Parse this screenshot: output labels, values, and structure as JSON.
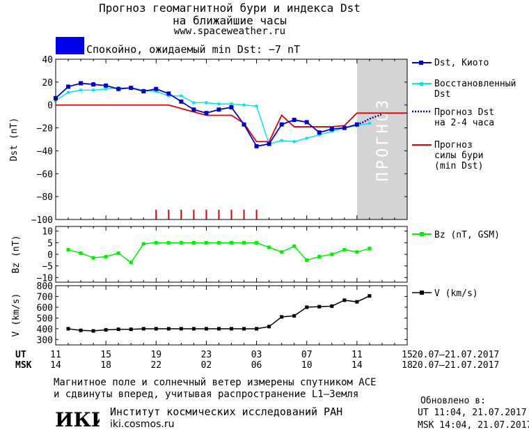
{
  "header": {
    "title_line1": "Прогноз геомагнитной бури и индекса Dst",
    "title_line2": "на ближайшие часы",
    "site": "www.spaceweather.ru",
    "status_text": "Спокойно, ожидаемый min Dst: −7 nT",
    "status_color": "#0000ee"
  },
  "legend": {
    "dst_kyoto": "Dst, Киото",
    "restored_1": "Восстановленный",
    "restored_2": "Dst",
    "forecast_1": "Прогноз Dst",
    "forecast_2": "на 2-4 часа",
    "storm_1": "Прогноз",
    "storm_2": "силы бури",
    "storm_3": "(min Dst)",
    "bz": "Bz (nT, GSM)",
    "v": "V (km/s)"
  },
  "forecast_band_label": "ПРОГНОЗ",
  "axis": {
    "ut_label": "UT",
    "msk_label": "MSK",
    "ut_ticks": [
      "11",
      "15",
      "19",
      "23",
      "03",
      "07",
      "11",
      "15"
    ],
    "msk_ticks": [
      "14",
      "18",
      "22",
      "02",
      "06",
      "10",
      "14",
      "18"
    ],
    "date_range_ut": "20.07–21.07.2017",
    "date_range_msk": "20.07–21.07.2017"
  },
  "footer": {
    "line1": "Магнитное поле и солнечный ветер измерены спутником ACE",
    "line2": "и сдвинуты вперед, учитывая распространение L1–Земля",
    "logo_text": "ИКИ",
    "institute": "Институт космических исследований РАН",
    "institute_url": "iki.cosmos.ru",
    "updated_label": "Обновлено в:",
    "updated_ut": "UT  11:04, 21.07.2017",
    "updated_msk": "MSK 14:04, 21.07.2017"
  },
  "colors": {
    "dst": "#0000cc",
    "restored": "#00e5ee",
    "forecast": "#0000cc",
    "storm": "#dd0000",
    "bz": "#00ee00",
    "v": "#000000",
    "band": "#d4d4d4"
  },
  "chart_data": [
    {
      "type": "line",
      "ylabel": "Dst (nT)",
      "ylim": [
        -100,
        40
      ],
      "yticks": [
        40,
        20,
        0,
        -20,
        -40,
        -60,
        -80,
        -100
      ],
      "x_unit": "hours UT from 20.07 11:00",
      "xlim": [
        0,
        28
      ],
      "series": [
        {
          "name": "Dst, Киото",
          "x": [
            0,
            1,
            2,
            3,
            4,
            5,
            6,
            7,
            8,
            9,
            10,
            11,
            12,
            13,
            14,
            15,
            16,
            17,
            18,
            19,
            20,
            21,
            22,
            23,
            24
          ],
          "y": [
            6,
            16,
            19,
            18,
            17,
            14,
            15,
            12,
            14,
            10,
            3,
            -4,
            -7,
            -4,
            -2,
            -17,
            -36,
            -34,
            -17,
            -13,
            -15,
            -24,
            -21,
            -20,
            -17
          ]
        },
        {
          "name": "Восстановленный Dst",
          "x": [
            0,
            1,
            2,
            3,
            4,
            5,
            6,
            7,
            8,
            9,
            10,
            11,
            12,
            13,
            14,
            15,
            16,
            17,
            18,
            19,
            20,
            21,
            22,
            23,
            24,
            25
          ],
          "y": [
            4,
            11,
            13,
            13,
            14,
            15,
            15,
            13,
            12,
            8,
            8,
            2,
            2,
            1,
            1,
            0,
            -1,
            -34,
            -31,
            -32,
            -29,
            -26,
            -23,
            -20,
            -18,
            -16
          ]
        },
        {
          "name": "Прогноз Dst на 2-4 часа",
          "x": [
            24,
            24.5,
            25,
            25.5,
            26
          ],
          "y": [
            -17,
            -15,
            -12,
            -10,
            -8
          ]
        },
        {
          "name": "Прогноз силы бури (min Dst)",
          "x": [
            0,
            9,
            11,
            12,
            14,
            15,
            16,
            17,
            18,
            19,
            20,
            21,
            22,
            23,
            24,
            28
          ],
          "y": [
            0,
            0,
            -6,
            -9,
            -9,
            -16,
            -32,
            -32,
            -9,
            -19,
            -19,
            -19,
            -19,
            -18,
            -7,
            -7
          ]
        }
      ],
      "storm_markers_x": [
        8,
        9,
        10,
        11,
        12,
        13,
        14,
        15,
        16
      ],
      "forecast_band_x": [
        24,
        28
      ]
    },
    {
      "type": "line",
      "ylabel": "Bz (nT)",
      "ylim": [
        -12,
        12
      ],
      "yticks": [
        10,
        5,
        0,
        -5,
        -10
      ],
      "x_unit": "hours UT from 20.07 11:00",
      "xlim": [
        0,
        28
      ],
      "series": [
        {
          "name": "Bz (nT, GSM)",
          "x": [
            1,
            2,
            3,
            4,
            5,
            6,
            7,
            8,
            9,
            10,
            11,
            12,
            13,
            14,
            15,
            16,
            17,
            18,
            19,
            20,
            21,
            22,
            23,
            24,
            25
          ],
          "y": [
            2,
            0.5,
            -1.5,
            -1,
            0.5,
            -3.5,
            4.5,
            5,
            5,
            5,
            5,
            5,
            5,
            5,
            5,
            5,
            3,
            1,
            3.5,
            -2.5,
            -1,
            0,
            2,
            1,
            2.5
          ]
        }
      ]
    },
    {
      "type": "line",
      "ylabel": "V (km/s)",
      "ylim": [
        250,
        800
      ],
      "yticks": [
        800,
        700,
        600,
        500,
        400,
        300
      ],
      "x_unit": "hours UT from 20.07 11:00",
      "xlim": [
        0,
        28
      ],
      "series": [
        {
          "name": "V (km/s)",
          "x": [
            1,
            2,
            3,
            4,
            5,
            6,
            7,
            8,
            9,
            10,
            11,
            12,
            13,
            14,
            15,
            16,
            17,
            18,
            19,
            20,
            21,
            22,
            23,
            24,
            25
          ],
          "y": [
            400,
            385,
            380,
            390,
            395,
            395,
            400,
            400,
            400,
            400,
            400,
            400,
            400,
            400,
            400,
            400,
            420,
            510,
            520,
            600,
            605,
            610,
            665,
            650,
            705
          ]
        }
      ]
    }
  ]
}
